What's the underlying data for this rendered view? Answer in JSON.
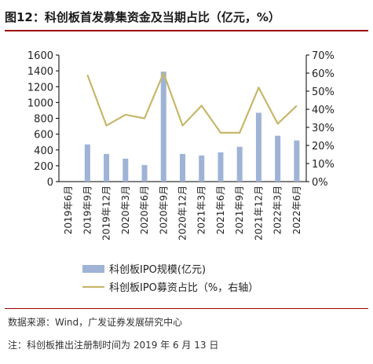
{
  "figure": {
    "title": "图12：科创板首发募集资金及当期占比（亿元，%）",
    "source": "数据来源：Wind，广发证券发展研究中心",
    "note": "注：科创板推出注册制时间为 2019 年 6 月 13 日"
  },
  "chart_data": {
    "type": "bar",
    "categories": [
      "2019年6月",
      "2019年9月",
      "2019年12月",
      "2020年3月",
      "2020年6月",
      "2020年9月",
      "2020年12月",
      "2021年3月",
      "2021年6月",
      "2021年9月",
      "2021年12月",
      "2022年3月",
      "2022年6月"
    ],
    "series": [
      {
        "name": "科创板IPO规模(亿元)",
        "type": "bar",
        "axis": "left",
        "values": [
          0,
          470,
          350,
          290,
          210,
          1390,
          350,
          330,
          370,
          440,
          870,
          580,
          520
        ]
      },
      {
        "name": "科创板IPO募资占比（%，右轴）",
        "type": "line",
        "axis": "right",
        "values": [
          null,
          59,
          31,
          37,
          35,
          60,
          31,
          42,
          27,
          27,
          52,
          32,
          42
        ]
      }
    ],
    "yleft": {
      "ylim": [
        0,
        1600
      ],
      "ticks": [
        "0",
        "200",
        "400",
        "600",
        "800",
        "1000",
        "1200",
        "1400",
        "1600"
      ]
    },
    "yright": {
      "ylim": [
        0,
        70
      ],
      "ticks": [
        "0%",
        "10%",
        "20%",
        "30%",
        "40%",
        "50%",
        "60%",
        "70%"
      ]
    },
    "colors": {
      "bar": "#9fb3d6",
      "line": "#c7b76a"
    },
    "legend": "bottom"
  }
}
